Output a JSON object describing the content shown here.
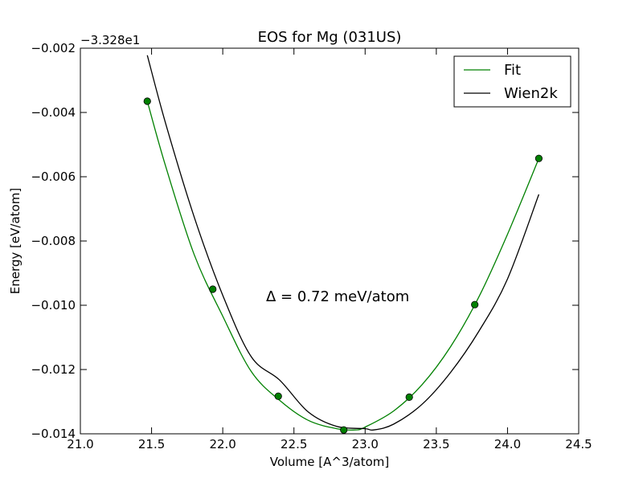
{
  "chart_data": {
    "type": "line",
    "title": "EOS for Mg (031US)",
    "xlabel": "Volume [A^3/atom]",
    "ylabel": "Energy [eV/atom]",
    "y_offset_text": "−3.328e1",
    "xlim": [
      21.0,
      24.5
    ],
    "ylim": [
      -0.014,
      -0.002
    ],
    "x_ticks": [
      21.0,
      21.5,
      22.0,
      22.5,
      23.0,
      23.5,
      24.0,
      24.5
    ],
    "x_tick_labels": [
      "21.0",
      "21.5",
      "22.0",
      "22.5",
      "23.0",
      "23.5",
      "24.0",
      "24.5"
    ],
    "y_ticks": [
      -0.002,
      -0.004,
      -0.006,
      -0.008,
      -0.01,
      -0.012,
      -0.014
    ],
    "y_tick_labels": [
      "−0.002",
      "−0.004",
      "−0.006",
      "−0.008",
      "−0.010",
      "−0.012",
      "−0.014"
    ],
    "grid": false,
    "legend_position": "top-right",
    "annotation": "Δ = 0.72 meV/atom",
    "series": [
      {
        "name": "Fit",
        "kind": "line",
        "color": "#008000",
        "x": [
          21.47,
          21.6,
          21.8,
          22.0,
          22.2,
          22.4,
          22.6,
          22.8,
          22.93,
          23.0,
          23.2,
          23.4,
          23.6,
          23.8,
          24.0,
          24.22
        ],
        "values": [
          -0.00365,
          -0.00569,
          -0.00843,
          -0.01034,
          -0.01206,
          -0.01296,
          -0.01358,
          -0.01384,
          -0.01388,
          -0.01379,
          -0.01329,
          -0.01247,
          -0.01129,
          -0.00973,
          -0.00779,
          -0.00543
        ]
      },
      {
        "name": "Wien2k",
        "kind": "line",
        "color": "#000000",
        "x": [
          21.47,
          21.6,
          21.8,
          22.0,
          22.2,
          22.4,
          22.6,
          22.8,
          23.0,
          23.06,
          23.2,
          23.4,
          23.6,
          23.8,
          24.0,
          24.22
        ],
        "values": [
          -0.00222,
          -0.00436,
          -0.00726,
          -0.00969,
          -0.0116,
          -0.01233,
          -0.01332,
          -0.01377,
          -0.01384,
          -0.01388,
          -0.0137,
          -0.01308,
          -0.01209,
          -0.0108,
          -0.00918,
          -0.00655
        ]
      },
      {
        "name": "",
        "kind": "markers",
        "color": "#008000",
        "x": [
          21.47,
          21.93,
          22.39,
          22.85,
          23.31,
          23.77,
          24.22
        ],
        "values": [
          -0.00365,
          -0.0095,
          -0.01283,
          -0.01388,
          -0.01286,
          -0.00998,
          -0.00543
        ]
      }
    ]
  }
}
